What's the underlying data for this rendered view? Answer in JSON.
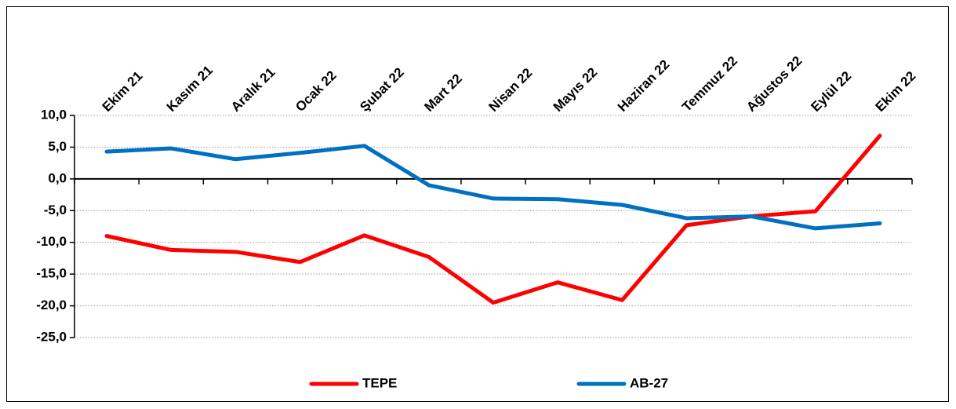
{
  "chart_data": {
    "type": "line",
    "categories": [
      "Ekim 21",
      "Kasım 21",
      "Aralık 21",
      "Ocak 22",
      "Şubat 22",
      "Mart 22",
      "Nisan 22",
      "Mayıs 22",
      "Haziran 22",
      "Temmuz 22",
      "Ağustos 22",
      "Eylül 22",
      "Ekim 22"
    ],
    "series": [
      {
        "name": "TEPE",
        "color": "#ff0000",
        "values": [
          -9.0,
          -11.2,
          -11.5,
          -13.1,
          -8.9,
          -12.3,
          -19.5,
          -16.3,
          -19.1,
          -7.3,
          -5.9,
          -5.1,
          6.8
        ]
      },
      {
        "name": "AB-27",
        "color": "#0070c0",
        "values": [
          4.3,
          4.8,
          3.1,
          4.1,
          5.2,
          -1.0,
          -3.1,
          -3.2,
          -4.1,
          -6.2,
          -5.9,
          -7.8,
          -7.0
        ]
      }
    ],
    "ylim": [
      -25,
      10
    ],
    "yticks": [
      {
        "value": 10,
        "label": "10,0"
      },
      {
        "value": 5,
        "label": "5,0"
      },
      {
        "value": 0,
        "label": "0,0"
      },
      {
        "value": -5,
        "label": "-5,0"
      },
      {
        "value": -10,
        "label": "-10,0"
      },
      {
        "value": -15,
        "label": "-15,0"
      },
      {
        "value": -20,
        "label": "-20,0"
      },
      {
        "value": -25,
        "label": "-25,0"
      }
    ],
    "grid": true,
    "legend": "bottom"
  }
}
